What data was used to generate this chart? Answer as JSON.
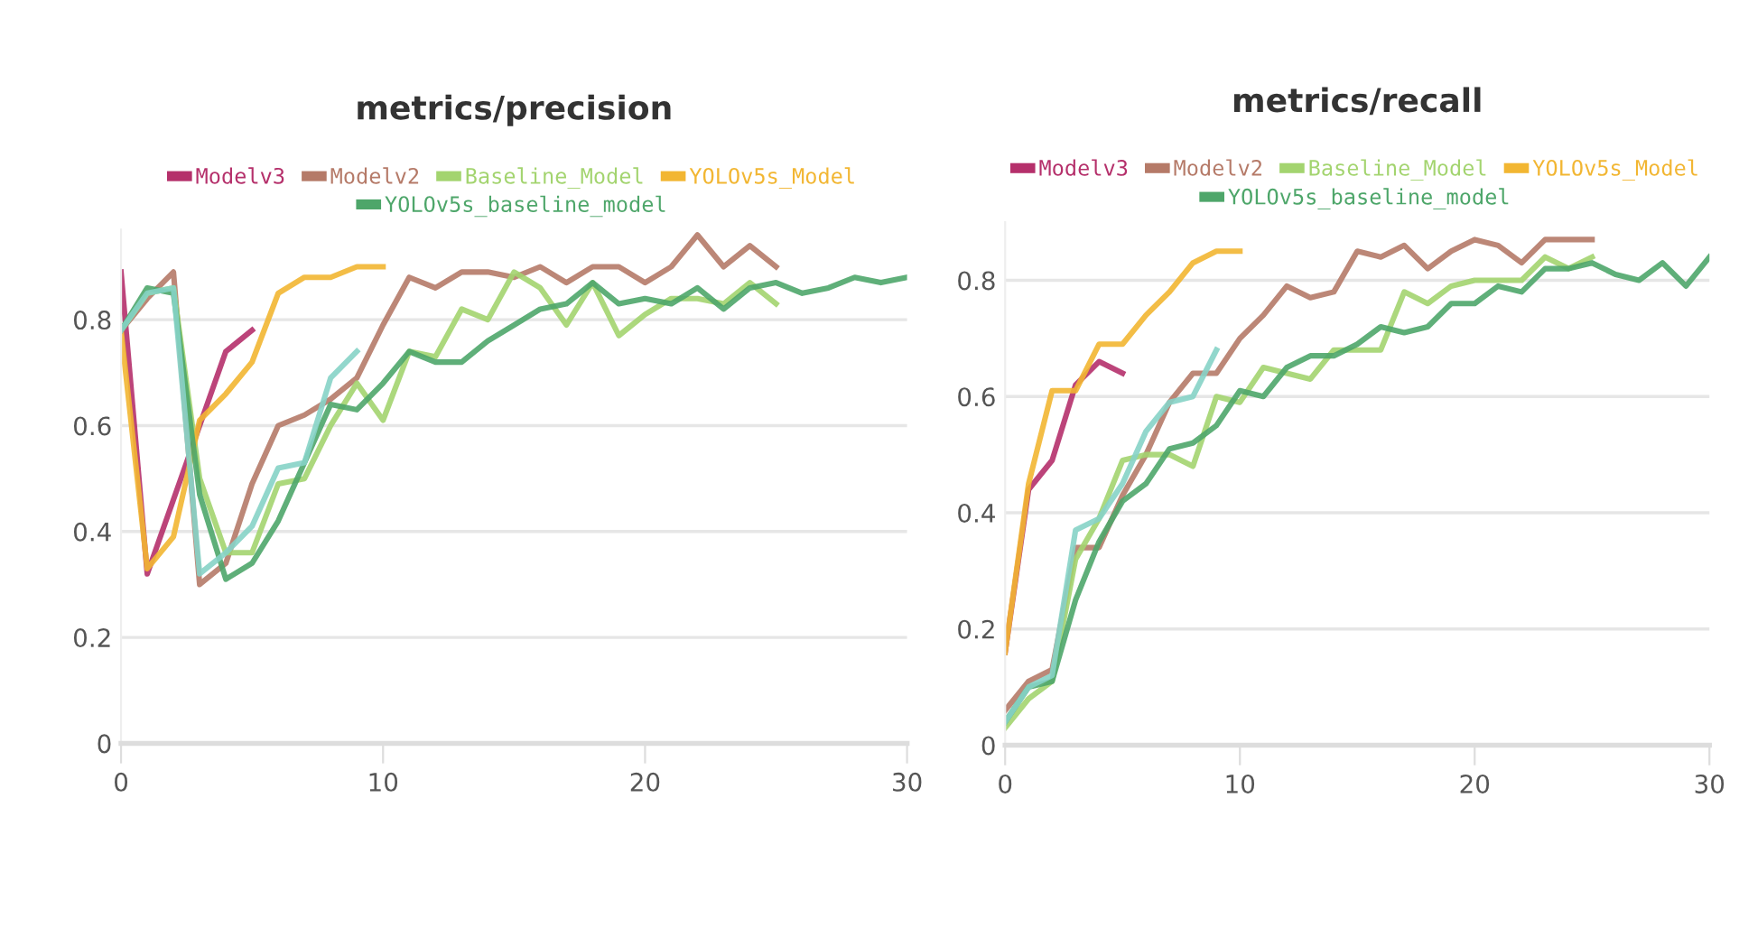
{
  "chart_data": [
    {
      "type": "line",
      "title": "metrics/precision",
      "xlim": [
        0,
        30
      ],
      "xticks": [
        0,
        10,
        20,
        30
      ],
      "ylim": [
        0,
        0.97
      ],
      "yticks": [
        0,
        0.2,
        0.4,
        0.6,
        0.8
      ],
      "grid": "y",
      "legend": "top",
      "line_style": "solid",
      "series": [
        {
          "name": "Modelv3",
          "color": "#b5306b",
          "x": [
            0,
            1,
            2,
            3,
            4,
            5
          ],
          "values": [
            0.89,
            0.32,
            0.46,
            0.6,
            0.74,
            0.78
          ]
        },
        {
          "name": "Modelv2",
          "color": "#b57a68",
          "x": [
            0,
            1,
            2,
            3,
            4,
            5,
            6,
            7,
            8,
            9,
            10,
            11,
            12,
            13,
            14,
            15,
            16,
            17,
            18,
            19,
            20,
            21,
            22,
            23,
            24,
            25
          ],
          "values": [
            0.78,
            0.84,
            0.89,
            0.3,
            0.34,
            0.49,
            0.6,
            0.62,
            0.65,
            0.69,
            0.79,
            0.88,
            0.86,
            0.89,
            0.89,
            0.88,
            0.9,
            0.87,
            0.9,
            0.9,
            0.87,
            0.9,
            0.96,
            0.9,
            0.94,
            0.9
          ]
        },
        {
          "name": "Baseline_Model",
          "color": "#a3d46f",
          "x": [
            0,
            1,
            2,
            3,
            4,
            5,
            6,
            7,
            8,
            9,
            10,
            11,
            12,
            13,
            14,
            15,
            16,
            17,
            18,
            19,
            20,
            21,
            22,
            23,
            24,
            25
          ],
          "values": [
            0.78,
            0.85,
            0.86,
            0.5,
            0.36,
            0.36,
            0.49,
            0.5,
            0.6,
            0.68,
            0.61,
            0.74,
            0.73,
            0.82,
            0.8,
            0.89,
            0.86,
            0.79,
            0.87,
            0.77,
            0.81,
            0.84,
            0.84,
            0.83,
            0.87,
            0.83
          ]
        },
        {
          "name": "YOLOv5s_Model",
          "color": "#f2b632",
          "x": [
            0,
            1,
            2,
            3,
            4,
            5,
            6,
            7,
            8,
            9,
            10
          ],
          "values": [
            0.78,
            0.33,
            0.39,
            0.61,
            0.66,
            0.72,
            0.85,
            0.88,
            0.88,
            0.9,
            0.9
          ]
        },
        {
          "name": "YOLOv5s_baseline_model",
          "color": "#4ea66a",
          "x": [
            0,
            1,
            2,
            3,
            4,
            5,
            6,
            7,
            8,
            9,
            10,
            11,
            12,
            13,
            14,
            15,
            16,
            17,
            18,
            19,
            20,
            21,
            22,
            23,
            24,
            25,
            26,
            27,
            28,
            29,
            30
          ],
          "values": [
            0.78,
            0.86,
            0.85,
            0.47,
            0.31,
            0.34,
            0.42,
            0.53,
            0.64,
            0.63,
            0.68,
            0.74,
            0.72,
            0.72,
            0.76,
            0.79,
            0.82,
            0.83,
            0.87,
            0.83,
            0.84,
            0.83,
            0.86,
            0.82,
            0.86,
            0.87,
            0.85,
            0.86,
            0.88,
            0.87,
            0.88
          ]
        },
        {
          "color": "#86d3c6",
          "x": [
            0,
            1,
            2,
            3,
            4,
            5,
            6,
            7,
            8,
            9
          ],
          "values": [
            0.78,
            0.85,
            0.86,
            0.32,
            0.36,
            0.41,
            0.52,
            0.53,
            0.69,
            0.74
          ]
        }
      ]
    },
    {
      "type": "line",
      "title": "metrics/recall",
      "xlim": [
        0,
        30
      ],
      "xticks": [
        0,
        10,
        20,
        30
      ],
      "ylim": [
        0,
        0.9
      ],
      "yticks": [
        0,
        0.2,
        0.4,
        0.6,
        0.8
      ],
      "grid": "y",
      "legend": "top",
      "line_style": "solid",
      "series": [
        {
          "name": "Modelv3",
          "color": "#b5306b",
          "x": [
            0,
            1,
            2,
            3,
            4,
            5
          ],
          "values": [
            0.16,
            0.44,
            0.49,
            0.62,
            0.66,
            0.64
          ]
        },
        {
          "name": "Modelv2",
          "color": "#b57a68",
          "x": [
            0,
            1,
            2,
            3,
            4,
            5,
            6,
            7,
            8,
            9,
            10,
            11,
            12,
            13,
            14,
            15,
            16,
            17,
            18,
            19,
            20,
            21,
            22,
            23,
            24,
            25
          ],
          "values": [
            0.06,
            0.11,
            0.13,
            0.34,
            0.34,
            0.43,
            0.5,
            0.59,
            0.64,
            0.64,
            0.7,
            0.74,
            0.79,
            0.77,
            0.78,
            0.85,
            0.84,
            0.86,
            0.82,
            0.85,
            0.87,
            0.86,
            0.83,
            0.87,
            0.87,
            0.87
          ]
        },
        {
          "name": "Baseline_Model",
          "color": "#a3d46f",
          "x": [
            0,
            1,
            2,
            3,
            4,
            5,
            6,
            7,
            8,
            9,
            10,
            11,
            12,
            13,
            14,
            15,
            16,
            17,
            18,
            19,
            20,
            21,
            22,
            23,
            24,
            25
          ],
          "values": [
            0.03,
            0.08,
            0.11,
            0.32,
            0.39,
            0.49,
            0.5,
            0.5,
            0.48,
            0.6,
            0.59,
            0.65,
            0.64,
            0.63,
            0.68,
            0.68,
            0.68,
            0.78,
            0.76,
            0.79,
            0.8,
            0.8,
            0.8,
            0.84,
            0.82,
            0.84
          ]
        },
        {
          "name": "YOLOv5s_Model",
          "color": "#f2b632",
          "x": [
            0,
            1,
            2,
            3,
            4,
            5,
            6,
            7,
            8,
            9,
            10
          ],
          "values": [
            0.16,
            0.45,
            0.61,
            0.61,
            0.69,
            0.69,
            0.74,
            0.78,
            0.83,
            0.85,
            0.85
          ]
        },
        {
          "name": "YOLOv5s_baseline_model",
          "color": "#4ea66a",
          "x": [
            0,
            1,
            2,
            3,
            4,
            5,
            6,
            7,
            8,
            9,
            10,
            11,
            12,
            13,
            14,
            15,
            16,
            17,
            18,
            19,
            20,
            21,
            22,
            23,
            24,
            25,
            26,
            27,
            28,
            29,
            30
          ],
          "values": [
            0.04,
            0.1,
            0.11,
            0.25,
            0.35,
            0.42,
            0.45,
            0.51,
            0.52,
            0.55,
            0.61,
            0.6,
            0.65,
            0.67,
            0.67,
            0.69,
            0.72,
            0.71,
            0.72,
            0.76,
            0.76,
            0.79,
            0.78,
            0.82,
            0.82,
            0.83,
            0.81,
            0.8,
            0.83,
            0.79,
            0.84
          ]
        },
        {
          "color": "#86d3c6",
          "x": [
            0,
            1,
            2,
            3,
            4,
            5,
            6,
            7,
            8,
            9
          ],
          "values": [
            0.04,
            0.1,
            0.12,
            0.37,
            0.39,
            0.45,
            0.54,
            0.59,
            0.6,
            0.68
          ]
        }
      ]
    }
  ]
}
